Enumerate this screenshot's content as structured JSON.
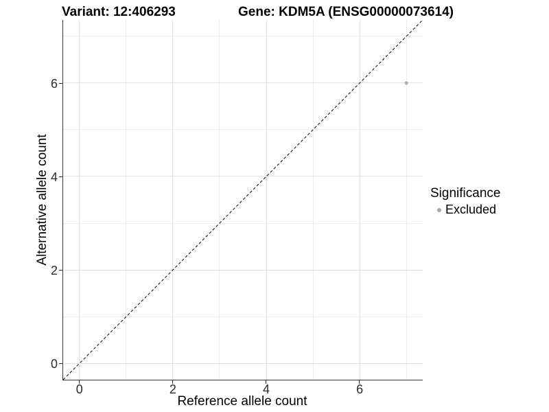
{
  "chart_data": {
    "type": "scatter",
    "title_parts": {
      "variant": "Variant: 12:406293",
      "gene": "Gene: KDM5A (ENSG00000073614)"
    },
    "xlabel": "Reference allele count",
    "ylabel": "Alternative allele count",
    "xlim": [
      -0.35,
      7.35
    ],
    "ylim": [
      -0.35,
      7.35
    ],
    "x_ticks": [
      0,
      2,
      4,
      6
    ],
    "y_ticks": [
      0,
      2,
      4,
      6
    ],
    "x_minor_ticks": [
      1,
      3,
      5,
      7
    ],
    "y_minor_ticks": [
      1,
      3,
      5,
      7
    ],
    "grid": true,
    "series": [
      {
        "name": "Excluded",
        "color": "#b0b0b0",
        "points": [
          {
            "x": 7,
            "y": 6
          }
        ]
      }
    ],
    "reference_line": {
      "type": "identity",
      "slope": 1,
      "intercept": 0,
      "style": "dashed",
      "color": "#000000"
    },
    "legend": {
      "title": "Significance",
      "position": "right",
      "items": [
        {
          "label": "Excluded",
          "color": "#a6a6a6"
        }
      ]
    }
  },
  "colors": {
    "grid_major": "#e2e2e2",
    "grid_minor": "#ececec",
    "axis_line": "#333333",
    "point": "#b0b0b0",
    "background": "#ffffff"
  }
}
